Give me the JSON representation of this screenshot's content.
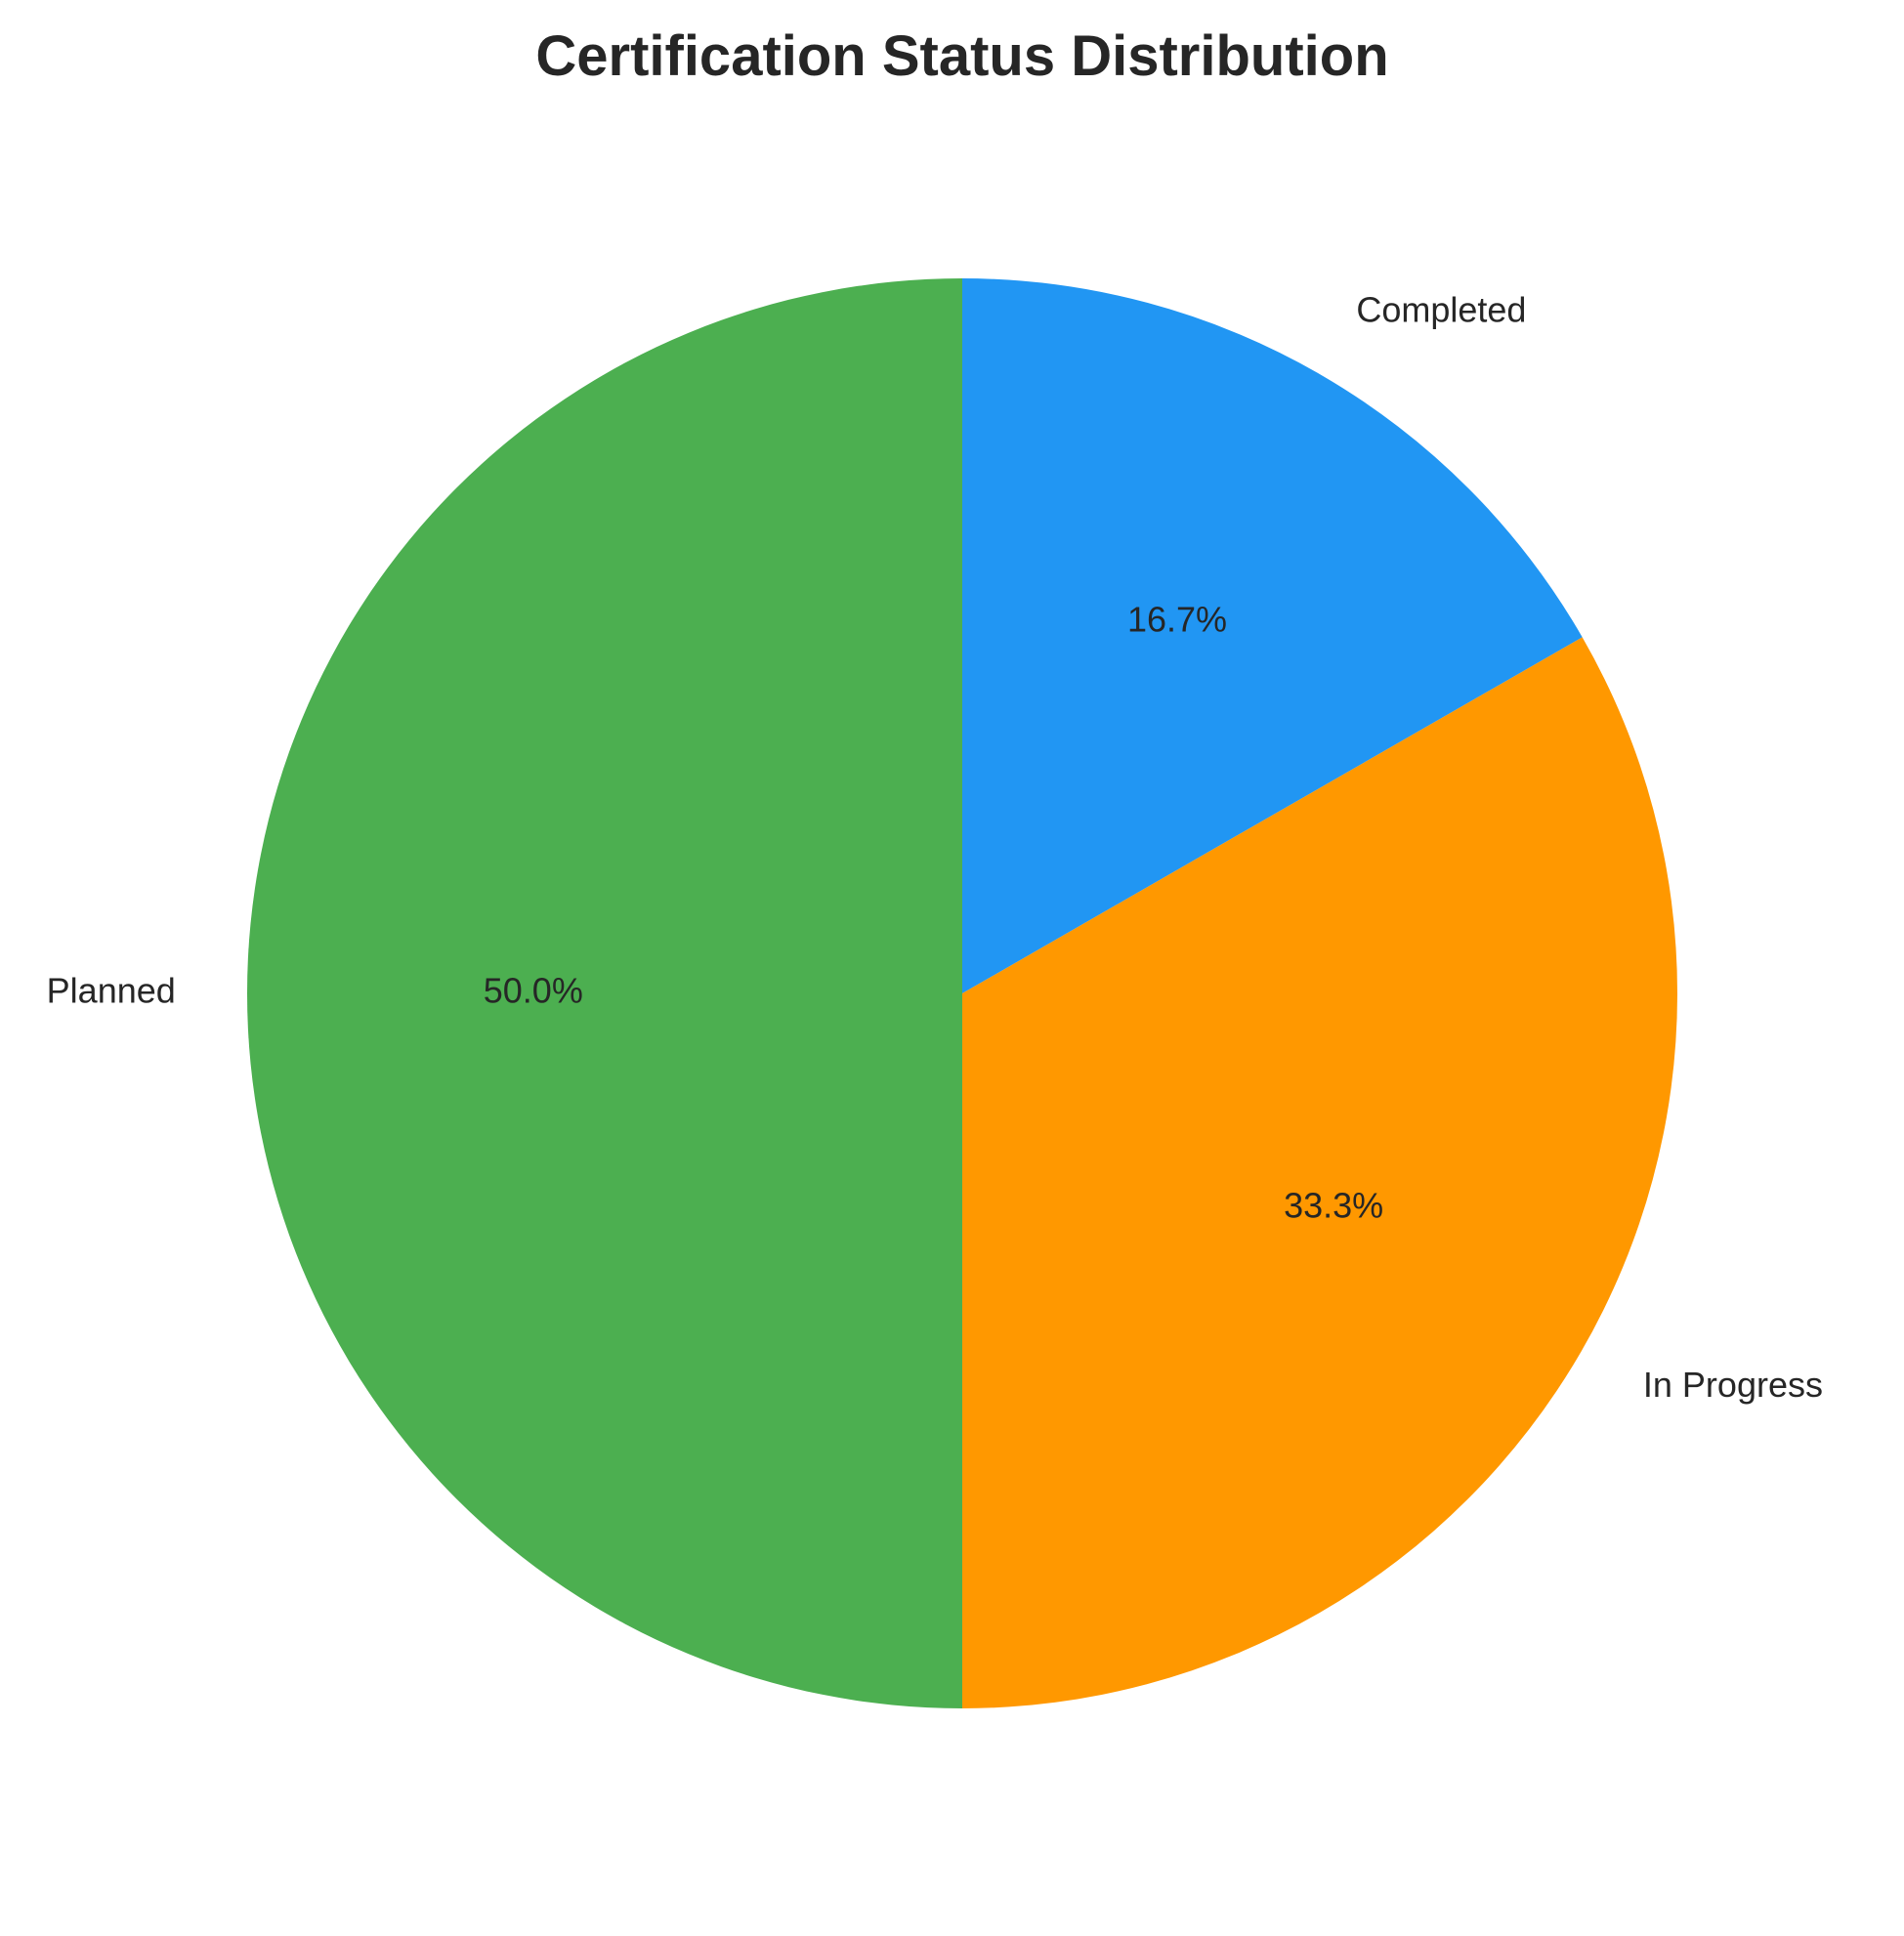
{
  "chart_data": {
    "type": "pie",
    "title": "Certification Status Distribution",
    "categories": [
      "Completed",
      "In Progress",
      "Planned"
    ],
    "values": [
      16.7,
      33.3,
      50.0
    ],
    "percent_labels": [
      "16.7%",
      "33.3%",
      "50.0%"
    ],
    "colors": [
      "#2196F3",
      "#FF9800",
      "#4CAF50"
    ],
    "start_angle_deg": 90,
    "direction": "clockwise",
    "legend": "none"
  }
}
